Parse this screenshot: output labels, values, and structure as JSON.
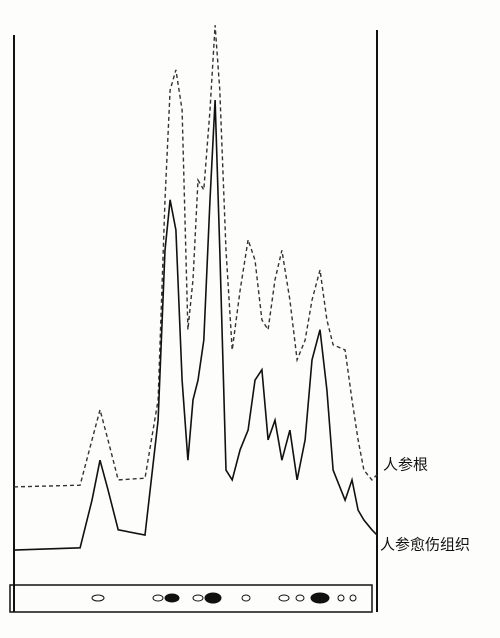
{
  "chart_data": {
    "type": "line",
    "x": [
      0,
      18.2,
      21.5,
      23.7,
      25.9,
      28.7,
      36.1,
      39.7,
      41.6,
      43,
      44.6,
      46.3,
      47.9,
      49.3,
      50.7,
      52.3,
      54,
      55.4,
      56.7,
      58.4,
      60.1,
      62.3,
      64.5,
      66.4,
      68.3,
      70,
      71.9,
      73.8,
      76,
      78,
      80.2,
      82.1,
      84.3,
      86.2,
      87.9,
      91.2,
      93.1,
      94.8,
      96.4,
      98.6,
      100
    ],
    "xlim": [
      0,
      100
    ],
    "ylim": [
      0,
      100
    ],
    "series": [
      {
        "name": "人参根",
        "color": "#333333",
        "dashed": true,
        "values": [
          19.5,
          19.8,
          27.6,
          32.8,
          27.6,
          20.7,
          21,
          34.5,
          69,
          87.9,
          91.4,
          84.5,
          46.6,
          55.2,
          72.4,
          70.7,
          84.5,
          99.1,
          87.9,
          60.3,
          43.1,
          53.4,
          62.1,
          58.6,
          48.3,
          46.6,
          55.2,
          60.3,
          51.7,
          41.4,
          44.8,
          51.7,
          56.9,
          48.3,
          44,
          43.1,
          34.5,
          27.6,
          22.4,
          20.7,
          21.6
        ]
      },
      {
        "name": "人参愈伤组织",
        "color": "#111111",
        "dashed": false,
        "values": [
          8.6,
          9,
          17.2,
          24.1,
          19,
          12.1,
          11.2,
          31,
          60.3,
          69,
          63.8,
          37.9,
          24.1,
          34.5,
          37.9,
          44.8,
          69,
          86.2,
          60.3,
          22.4,
          20.7,
          25.9,
          29.3,
          37.9,
          39.7,
          27.6,
          31,
          24.1,
          29.3,
          20.7,
          27.6,
          41.4,
          46.6,
          36.2,
          22.4,
          17.2,
          20.7,
          15.5,
          13.8,
          12.1,
          11.2
        ]
      }
    ]
  }
}
